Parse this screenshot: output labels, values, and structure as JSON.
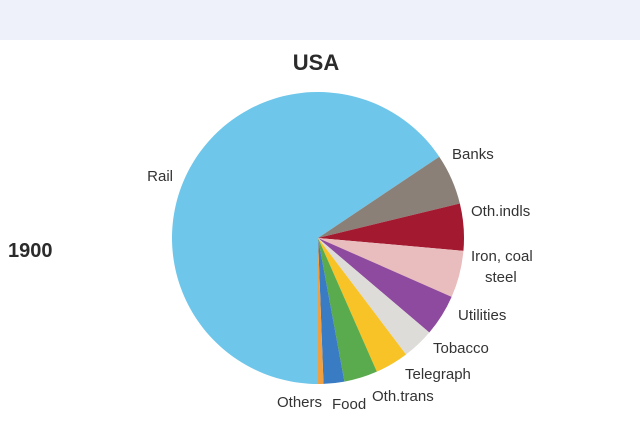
{
  "chart_data": {
    "type": "pie",
    "title": "USA",
    "row_label": "1900",
    "slices": [
      {
        "label": "Rail",
        "value": 65.6,
        "color": "#6ec6ea"
      },
      {
        "label": "Banks",
        "value": 5.6,
        "color": "#8a8078"
      },
      {
        "label": "Oth.indls",
        "value": 5.2,
        "color": "#a31a30"
      },
      {
        "label": "Iron, coal steel",
        "value": 5.2,
        "color": "#e9bcbe"
      },
      {
        "label": "Utilities",
        "value": 4.6,
        "color": "#8e4a9e"
      },
      {
        "label": "Tobacco",
        "value": 3.5,
        "color": "#dedcd8"
      },
      {
        "label": "Telegraph",
        "value": 3.7,
        "color": "#f7c327"
      },
      {
        "label": "Oth.trans",
        "value": 3.7,
        "color": "#5aab4d"
      },
      {
        "label": "Food",
        "value": 2.3,
        "color": "#3a7cc4"
      },
      {
        "label": "Others",
        "value": 0.6,
        "color": "#f0a040"
      }
    ]
  }
}
